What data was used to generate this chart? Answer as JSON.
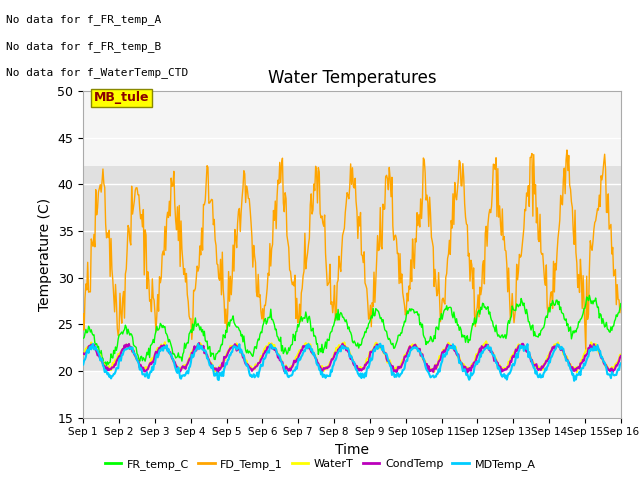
{
  "title": "Water Temperatures",
  "xlabel": "Time",
  "ylabel": "Temperature (C)",
  "ylim": [
    15,
    50
  ],
  "yticks": [
    15,
    20,
    25,
    30,
    35,
    40,
    45,
    50
  ],
  "xlim": [
    0,
    15
  ],
  "xtick_labels": [
    "Sep 1",
    "Sep 2",
    "Sep 3",
    "Sep 4",
    "Sep 5",
    "Sep 6",
    "Sep 7",
    "Sep 8",
    "Sep 9",
    "Sep 10",
    "Sep 11",
    "Sep 12",
    "Sep 13",
    "Sep 14",
    "Sep 15",
    "Sep 16"
  ],
  "bg_band_ymin": 20,
  "bg_band_ymax": 42,
  "text_annotations": [
    "No data for f_FR_temp_A",
    "No data for f_FR_temp_B",
    "No data for f_WaterTemp_CTD"
  ],
  "mb_tule_label": "MB_tule",
  "legend_entries": [
    {
      "label": "FR_temp_C",
      "color": "#00ff00"
    },
    {
      "label": "FD_Temp_1",
      "color": "#ffa500"
    },
    {
      "label": "WaterT",
      "color": "#ffff00"
    },
    {
      "label": "CondTemp",
      "color": "#bb00bb"
    },
    {
      "label": "MDTemp_A",
      "color": "#00ccff"
    }
  ],
  "colors": {
    "FR_temp_C": "#00ff00",
    "FD_Temp_1": "#ffa500",
    "WaterT": "#ffff00",
    "CondTemp": "#bb00bb",
    "MDTemp_A": "#00ccff"
  },
  "background_color": "#ffffff",
  "plot_bg_color": "#f5f5f5"
}
